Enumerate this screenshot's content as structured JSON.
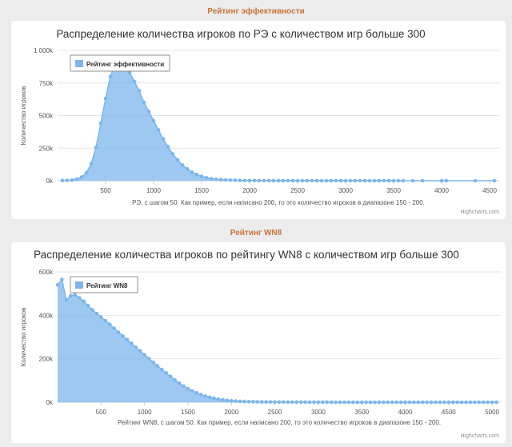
{
  "page": {
    "section1_title": "Рейтинг эффективности",
    "section2_title": "Рейтинг WN8",
    "credit": "Highcharts.com"
  },
  "chart_data": [
    {
      "type": "area",
      "title": "Распределение количества игроков по РЭ с количеством игр больше 300",
      "xlabel": "РЭ, с шагом 50. Как пример, если написано 200, то это количество игроков в диапазоне 150 - 200.",
      "ylabel": "Количество игроков",
      "legend": "Рейтинг эффективности",
      "legend_position": "top-left",
      "series_color": "#7cb5ec",
      "xlim": [
        0,
        4600
      ],
      "ylim": [
        0,
        1000000
      ],
      "xticks": [
        "500",
        "1000",
        "1500",
        "2000",
        "2500",
        "3000",
        "3500",
        "4000",
        "4500"
      ],
      "xtick_values": [
        500,
        1000,
        1500,
        2000,
        2500,
        3000,
        3500,
        4000,
        4500
      ],
      "yticks": [
        "0k",
        "250k",
        "500k",
        "750k",
        "1 000k"
      ],
      "ytick_values": [
        0,
        250000,
        500000,
        750000,
        1000000
      ],
      "x": [
        50,
        100,
        150,
        200,
        250,
        300,
        350,
        400,
        450,
        500,
        550,
        600,
        650,
        700,
        750,
        800,
        850,
        900,
        950,
        1000,
        1050,
        1100,
        1150,
        1200,
        1250,
        1300,
        1350,
        1400,
        1450,
        1500,
        1550,
        1600,
        1650,
        1700,
        1750,
        1800,
        1850,
        1900,
        1950,
        2000,
        2050,
        2100,
        2150,
        2200,
        2250,
        2300,
        2350,
        2400,
        2450,
        2500,
        2550,
        2600,
        2650,
        2700,
        2750,
        2800,
        2850,
        2900,
        2950,
        3000,
        3050,
        3100,
        3150,
        3200,
        3250,
        3300,
        3350,
        3400,
        3450,
        3500,
        3550,
        3600,
        3700,
        3800,
        4000,
        4050,
        4350,
        4550
      ],
      "y": [
        2000,
        3000,
        5000,
        12000,
        28000,
        60000,
        130000,
        255000,
        440000,
        630000,
        800000,
        890000,
        900000,
        880000,
        830000,
        760000,
        690000,
        600000,
        530000,
        460000,
        390000,
        320000,
        260000,
        205000,
        160000,
        120000,
        90000,
        65000,
        47000,
        33000,
        23000,
        16000,
        11000,
        8000,
        6000,
        4500,
        3500,
        2500,
        2000,
        1500,
        1000,
        800,
        600,
        500,
        400,
        300,
        300,
        200,
        200,
        150,
        150,
        100,
        100,
        80,
        80,
        60,
        60,
        50,
        50,
        40,
        40,
        30,
        30,
        30,
        20,
        20,
        20,
        20,
        10,
        10,
        10,
        10,
        10,
        5,
        5,
        5,
        2,
        2
      ]
    },
    {
      "type": "area",
      "title": "Распределение количества игроков по рейтингу WN8 с количеством игр больше 300",
      "xlabel": "Рейтинг WN8, с шагом 50. Как пример, если написано 200, то это количество игроков в диапазоне 150 - 200.",
      "ylabel": "Количество игроков",
      "legend": "Рейтинг WN8",
      "legend_position": "top-left",
      "series_color": "#7cb5ec",
      "xlim": [
        0,
        5100
      ],
      "ylim": [
        0,
        600000
      ],
      "xticks": [
        "500",
        "1000",
        "1500",
        "2000",
        "2500",
        "3000",
        "3500",
        "4000",
        "4500",
        "5000"
      ],
      "xtick_values": [
        500,
        1000,
        1500,
        2000,
        2500,
        3000,
        3500,
        4000,
        4500,
        5000
      ],
      "yticks": [
        "0k",
        "200k",
        "400k",
        "600k"
      ],
      "ytick_values": [
        0,
        200000,
        400000,
        600000
      ],
      "x": [
        0,
        50,
        100,
        150,
        200,
        250,
        300,
        350,
        400,
        450,
        500,
        550,
        600,
        650,
        700,
        750,
        800,
        850,
        900,
        950,
        1000,
        1050,
        1100,
        1150,
        1200,
        1250,
        1300,
        1350,
        1400,
        1450,
        1500,
        1550,
        1600,
        1650,
        1700,
        1750,
        1800,
        1850,
        1900,
        1950,
        2000,
        2050,
        2100,
        2150,
        2200,
        2250,
        2300,
        2350,
        2400,
        2450,
        2500,
        2550,
        2600,
        2650,
        2700,
        2750,
        2800,
        2850,
        2900,
        2950,
        3000,
        3050,
        3100,
        3150,
        3200,
        3250,
        3300,
        3350,
        3400,
        3450,
        3500,
        3550,
        3600,
        3650,
        3700,
        3750,
        3800,
        3850,
        3900,
        3950,
        4000,
        4050,
        4100,
        4150,
        4200,
        4250,
        4300,
        4350,
        4400,
        4450,
        4500,
        4550,
        4600,
        4650,
        4700,
        4750,
        4800,
        4850,
        4900,
        4950,
        5000,
        5050
      ],
      "y": [
        540000,
        565000,
        470000,
        490000,
        495000,
        480000,
        465000,
        445000,
        425000,
        408000,
        392000,
        375000,
        358000,
        340000,
        322000,
        305000,
        288000,
        270000,
        253000,
        236000,
        218000,
        201000,
        184000,
        167000,
        150000,
        134000,
        118000,
        102000,
        87000,
        74000,
        62000,
        52000,
        43000,
        35000,
        28000,
        23000,
        18000,
        14000,
        11000,
        8500,
        6500,
        5000,
        4000,
        3200,
        2600,
        2100,
        1700,
        1400,
        1200,
        1000,
        850,
        750,
        650,
        550,
        480,
        420,
        370,
        330,
        290,
        260,
        230,
        210,
        190,
        170,
        150,
        130,
        120,
        110,
        100,
        90,
        80,
        70,
        60,
        55,
        50,
        45,
        40,
        35,
        30,
        28,
        25,
        22,
        20,
        18,
        16,
        14,
        12,
        11,
        10,
        9,
        8,
        7,
        6,
        5,
        5,
        4,
        4,
        3,
        3,
        2,
        2,
        2
      ]
    }
  ]
}
